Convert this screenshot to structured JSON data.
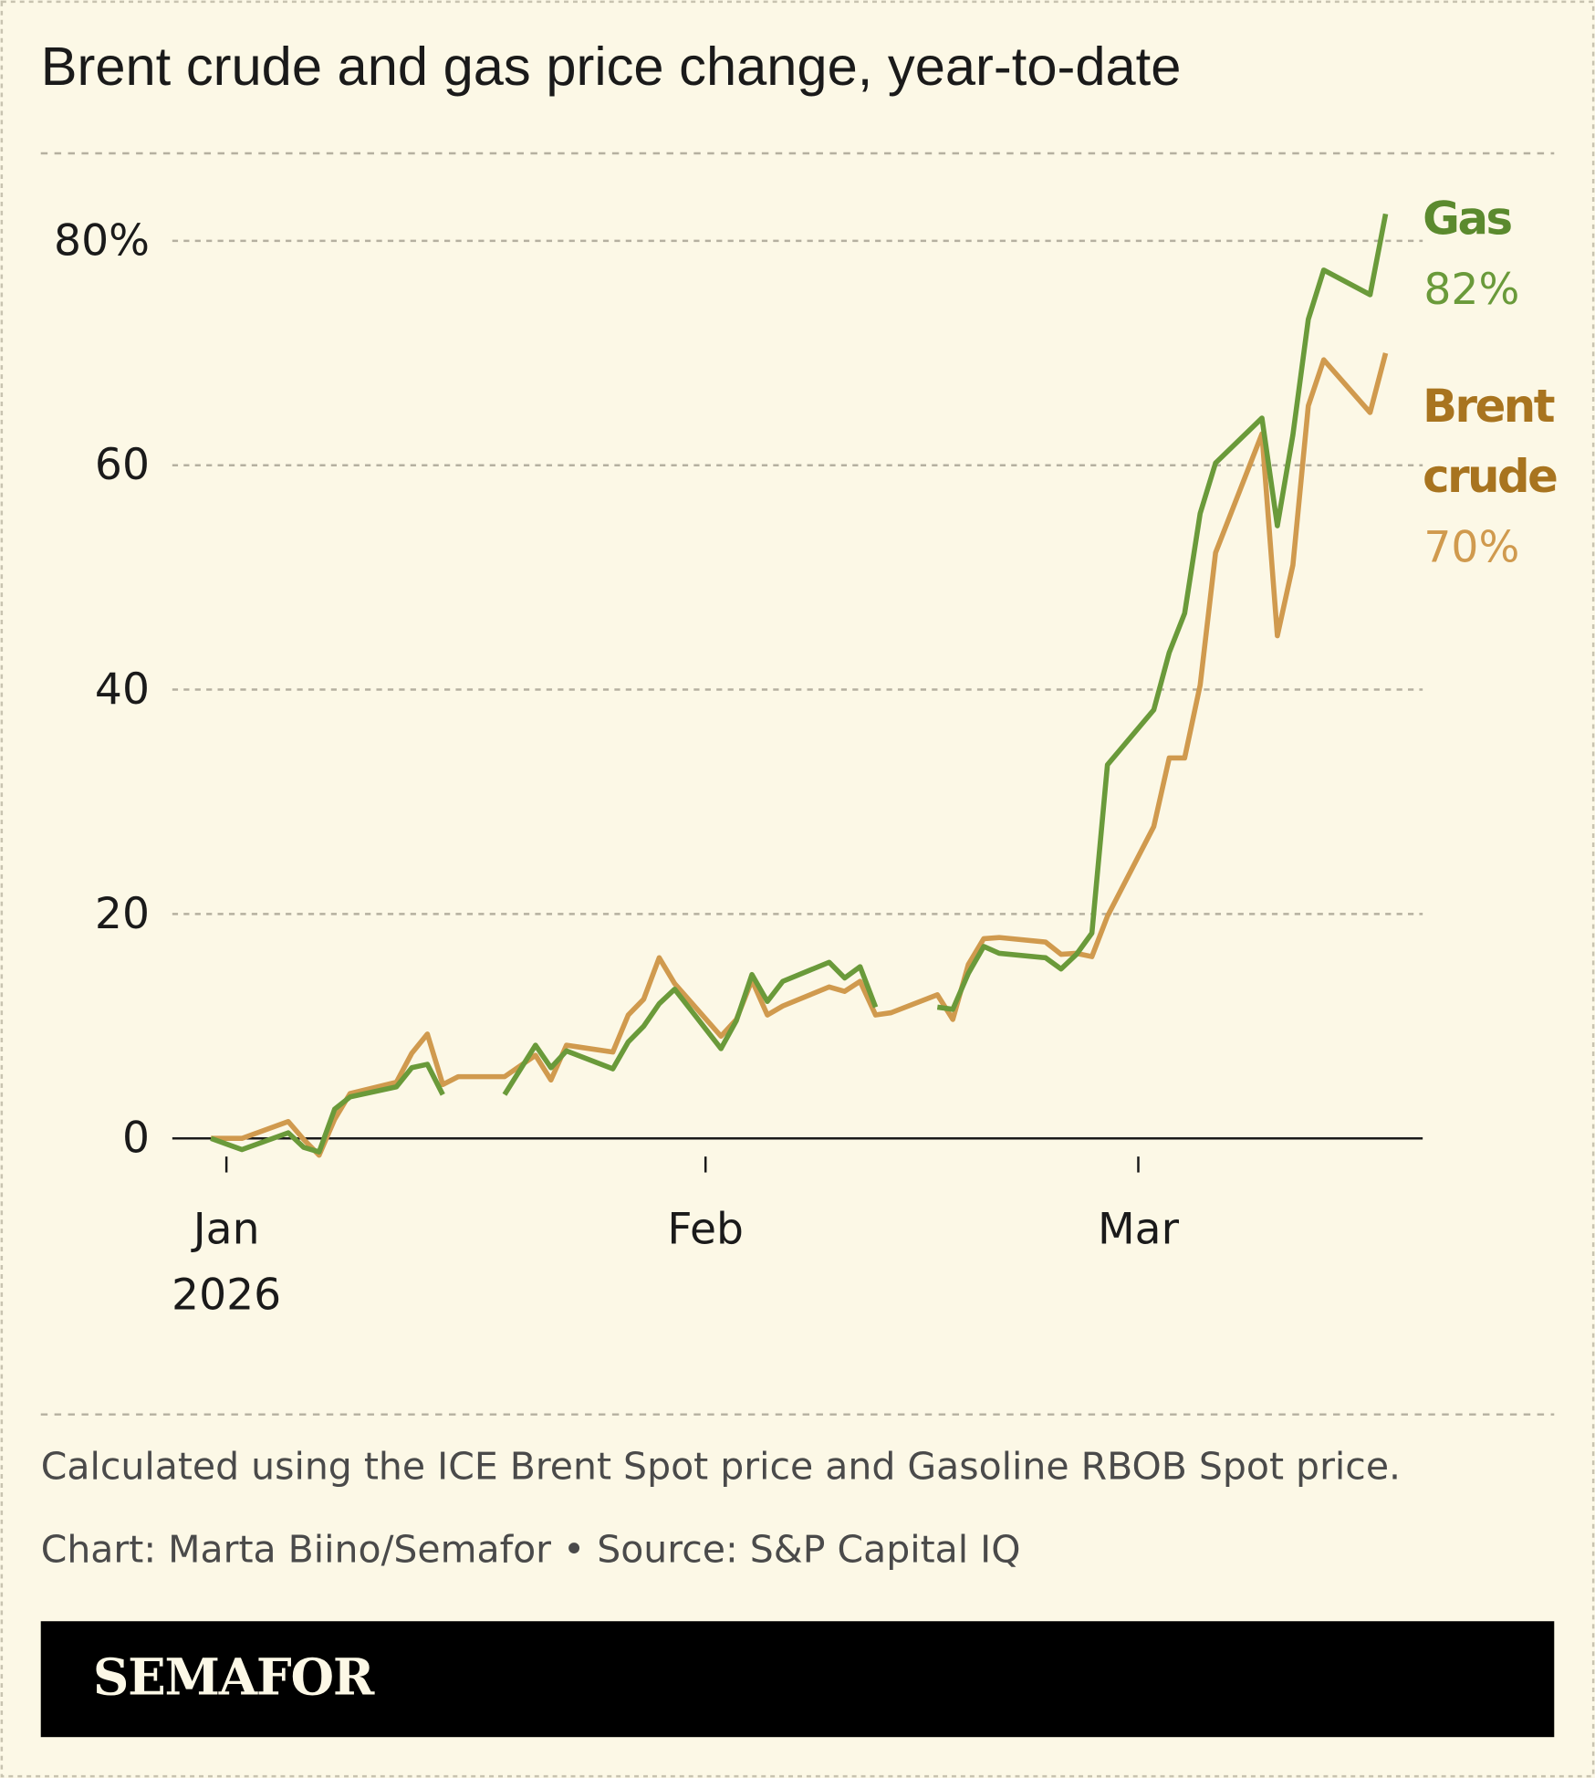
{
  "chart_data": {
    "type": "line",
    "title": "Brent crude and gas price change, year-to-date",
    "x": [
      0,
      2,
      5,
      6,
      7,
      8,
      9,
      12,
      13,
      14,
      15,
      16,
      19,
      21,
      22,
      23,
      26,
      27,
      28,
      29,
      30,
      33,
      34,
      35,
      36,
      37,
      40,
      41,
      42,
      43,
      44,
      47,
      48,
      49,
      50,
      51,
      54,
      55,
      56,
      57,
      58,
      61,
      62,
      63,
      64,
      65,
      68,
      69,
      70,
      71,
      72,
      75,
      76
    ],
    "series": [
      {
        "name": "Gas",
        "color": "#6a9a3a",
        "label_color": "#5b8a2e",
        "end_label": "82%",
        "values": [
          0,
          -1,
          0.5,
          -0.8,
          -1.2,
          2.6,
          3.7,
          4.6,
          6.3,
          6.6,
          3.9,
          null,
          3.9,
          8.3,
          6.3,
          7.8,
          6.2,
          8.6,
          10,
          12,
          13.3,
          8,
          10.5,
          14.6,
          12.2,
          14,
          15.7,
          14.3,
          15.3,
          11.7,
          null,
          11.7,
          11.5,
          14.7,
          17.1,
          16.5,
          16.1,
          15.1,
          16.4,
          18.3,
          33.3,
          38.2,
          43.3,
          46.8,
          55.7,
          60.2,
          64.2,
          54.6,
          62.7,
          73,
          77.4,
          75.2,
          82.4
        ]
      },
      {
        "name": "Brent crude",
        "color": "#d09a4e",
        "label_color": "#a8741f",
        "end_label": "70%",
        "values": [
          0,
          0,
          1.5,
          -0.1,
          -1.5,
          1.7,
          4,
          5,
          7.6,
          9.3,
          4.8,
          5.5,
          5.5,
          7.4,
          5.2,
          8.3,
          7.7,
          11,
          12.4,
          16.1,
          13.8,
          9.1,
          10.6,
          14.1,
          11,
          11.8,
          13.5,
          13.1,
          14,
          11,
          11.2,
          12.8,
          10.6,
          15.5,
          17.8,
          17.9,
          17.5,
          16.4,
          16.5,
          16.2,
          19.8,
          27.8,
          33.9,
          33.9,
          40.4,
          52.2,
          62.8,
          44.8,
          51.1,
          65.3,
          69.4,
          64.7,
          70
        ]
      }
    ],
    "xlim": [
      -2.5,
      78.4
    ],
    "xticks": [
      {
        "value": 1,
        "label": "Jan"
      },
      {
        "value": 32,
        "label": "Feb"
      },
      {
        "value": 60,
        "label": "Mar"
      }
    ],
    "x_sublabel": "2026",
    "ylim": [
      0,
      80
    ],
    "yticks": [
      0,
      20,
      40,
      60,
      {
        "value": 80,
        "label": "80%"
      }
    ],
    "grid": true,
    "notes": [
      "Calculated using the ICE Brent Spot price and Gasoline RBOB Spot price.",
      "Chart: Marta Biino/Semafor • Source: S&P Capital IQ"
    ],
    "brand": "SEMAFOR"
  }
}
